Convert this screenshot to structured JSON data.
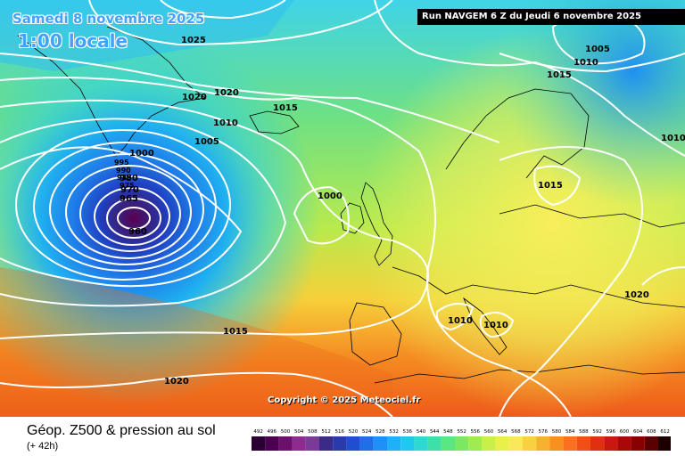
{
  "header": {
    "valid_date": "Samedi 8 novembre 2025",
    "local_time": "1:00 locale",
    "run_info": "Run NAVGEM 6 Z du Jeudi 6 novembre 2025"
  },
  "copyright": "Copyright © 2025 Meteociel.fr",
  "footer": {
    "title": "Géop. Z500 & pression au sol",
    "lead": "(+ 42h)"
  },
  "legend": {
    "values": [
      "492",
      "496",
      "500",
      "504",
      "508",
      "512",
      "516",
      "520",
      "524",
      "528",
      "532",
      "536",
      "540",
      "544",
      "548",
      "552",
      "556",
      "560",
      "564",
      "568",
      "572",
      "576",
      "580",
      "584",
      "588",
      "592",
      "596",
      "600",
      "604",
      "608",
      "612"
    ],
    "colors": [
      "#2a0033",
      "#4b0050",
      "#6e0f6e",
      "#8f2a8f",
      "#7a3a9a",
      "#3a2a8a",
      "#2a3aa8",
      "#1f4fd0",
      "#1f6fe8",
      "#1f90f5",
      "#1fb0f8",
      "#20c8f0",
      "#2fd8d0",
      "#3fe0a8",
      "#5ae680",
      "#7ae860",
      "#a0ec50",
      "#c8f048",
      "#eaf04a",
      "#fbe85a",
      "#f8d040",
      "#f8b030",
      "#f89020",
      "#f87020",
      "#f05018",
      "#e03010",
      "#c81810",
      "#a80808",
      "#880000",
      "#5a0000",
      "#1a0000"
    ]
  },
  "isobar_labels": [
    "1025",
    "1020",
    "1020",
    "1015",
    "1010",
    "1005",
    "1000",
    "995",
    "990",
    "985",
    "980",
    "975",
    "970",
    "965",
    "960",
    "1000",
    "1005",
    "1010",
    "1015",
    "1010",
    "1015",
    "1020",
    "1010",
    "1010",
    "1015",
    "1020"
  ]
}
